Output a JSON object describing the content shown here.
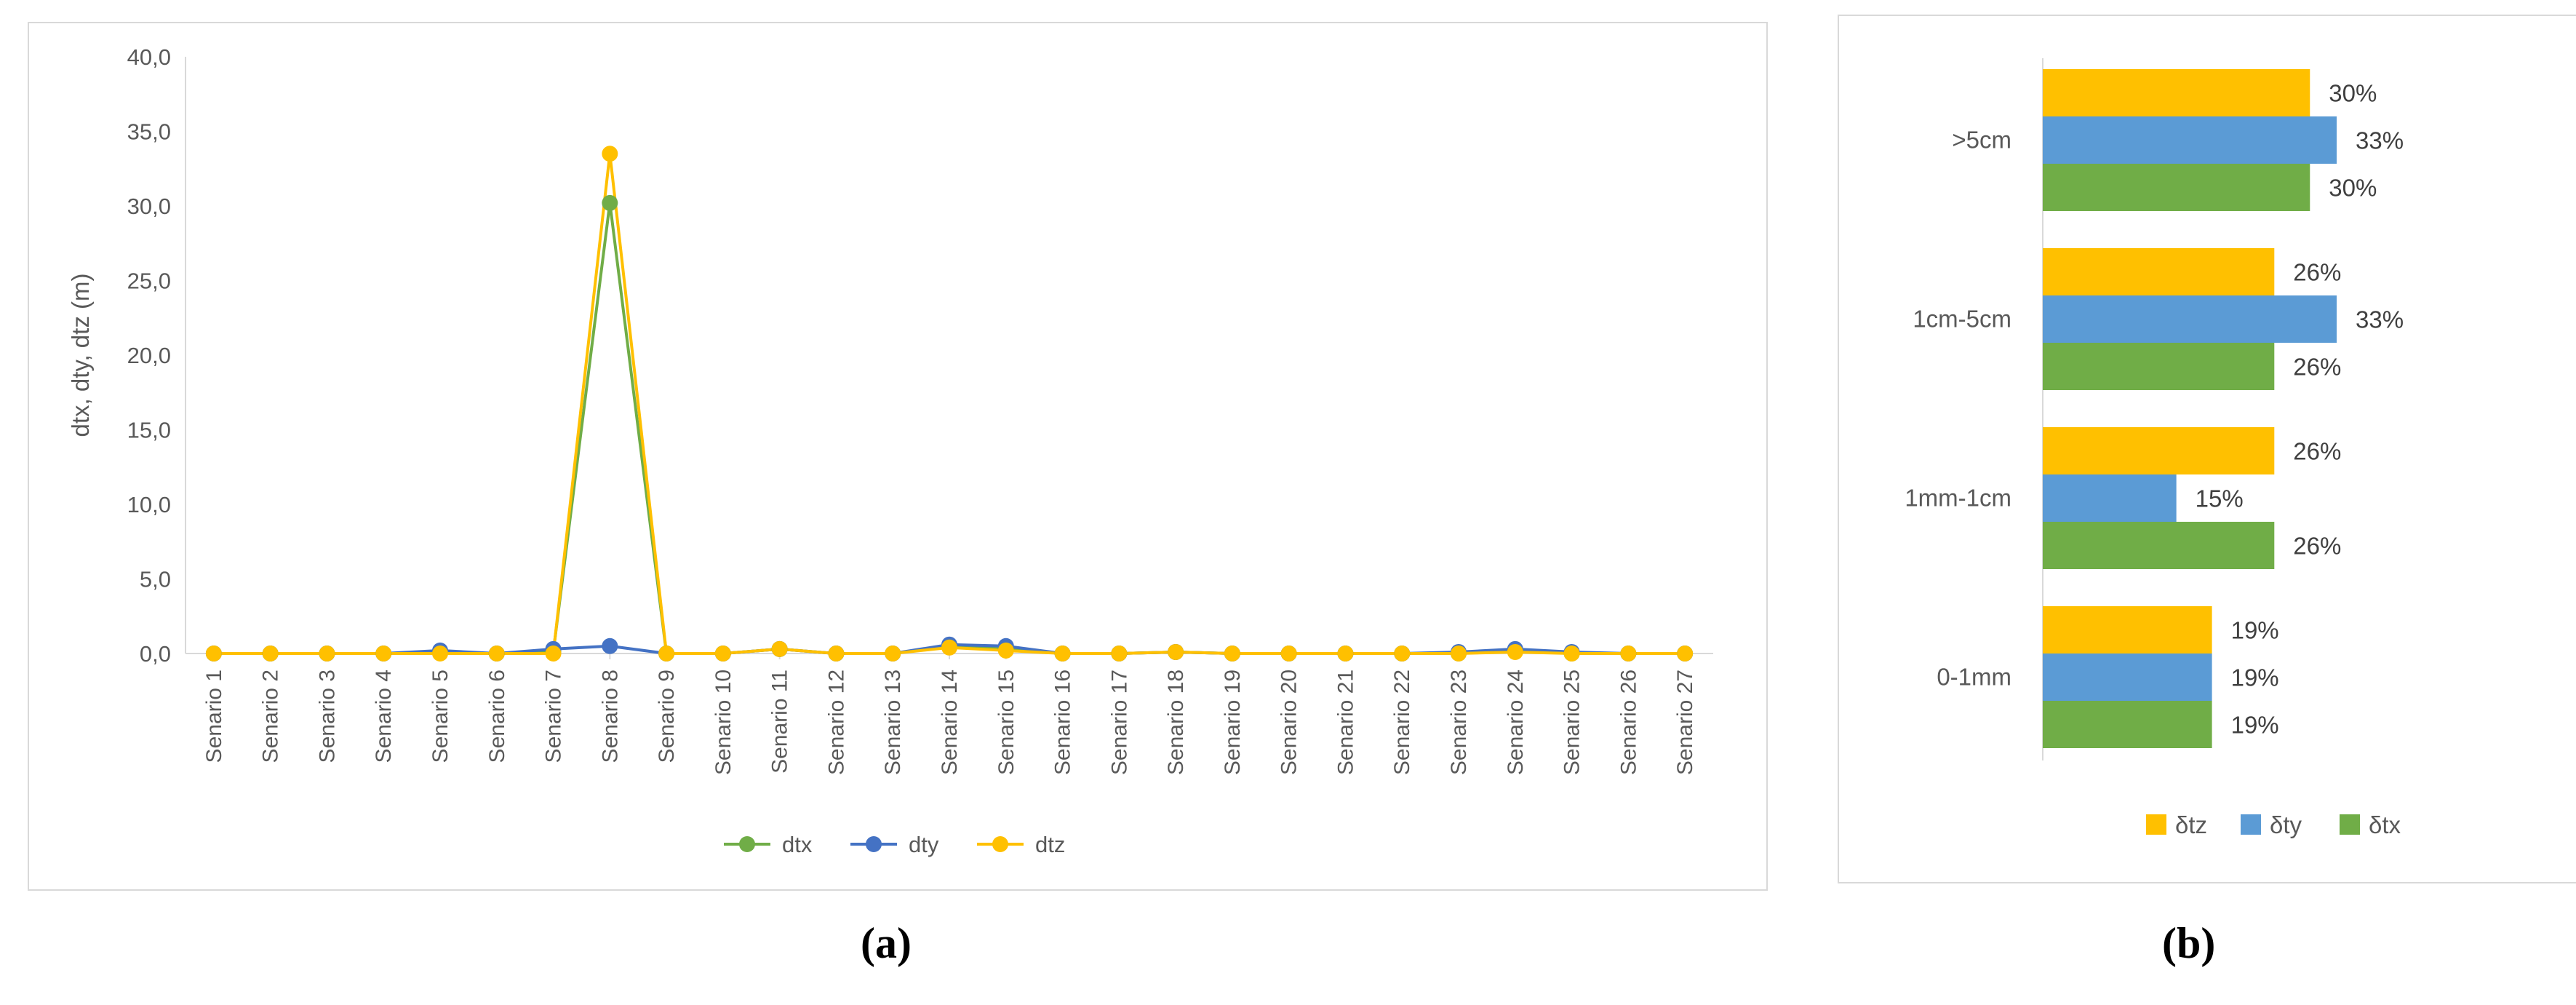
{
  "chart_data": [
    {
      "type": "line",
      "ylabel": "dtx, dty, dtz (m)",
      "ylim": [
        0,
        40
      ],
      "yticks": [
        "0,0",
        "5,0",
        "10,0",
        "15,0",
        "20,0",
        "25,0",
        "30,0",
        "35,0",
        "40,0"
      ],
      "grid": false,
      "legend_position": "bottom",
      "categories": [
        "Senario 1",
        "Senario 2",
        "Senario 3",
        "Senario 4",
        "Senario 5",
        "Senario 6",
        "Senario 7",
        "Senario 8",
        "Senario 9",
        "Senario 10",
        "Senario 11",
        "Senario 12",
        "Senario 13",
        "Senario 14",
        "Senario 15",
        "Senario 16",
        "Senario 17",
        "Senario 18",
        "Senario 19",
        "Senario 20",
        "Senario 21",
        "Senario 22",
        "Senario 23",
        "Senario 24",
        "Senario 25",
        "Senario 26",
        "Senario 27"
      ],
      "series": [
        {
          "name": "dtx",
          "color": "#70ad47",
          "values": [
            0,
            0,
            0,
            0,
            0.1,
            0,
            0.1,
            30.2,
            0,
            0,
            0.3,
            0,
            0,
            0.5,
            0.3,
            0,
            0,
            0.1,
            0,
            0,
            0,
            0,
            0,
            0.2,
            0,
            0,
            0
          ]
        },
        {
          "name": "dty",
          "color": "#4472c4",
          "values": [
            0,
            0,
            0,
            0,
            0.2,
            0,
            0.3,
            0.5,
            0,
            0,
            0.3,
            0,
            0,
            0.6,
            0.5,
            0,
            0,
            0.1,
            0,
            0,
            0,
            0,
            0.1,
            0.3,
            0.1,
            0,
            0
          ]
        },
        {
          "name": "dtz",
          "color": "#ffc000",
          "values": [
            0,
            0,
            0,
            0,
            0,
            0,
            0,
            33.5,
            0,
            0,
            0.3,
            0,
            0,
            0.4,
            0.2,
            0,
            0,
            0.1,
            0,
            0,
            0,
            0,
            0,
            0.1,
            0,
            0,
            0
          ]
        }
      ]
    },
    {
      "type": "bar",
      "orientation": "horizontal",
      "categories": [
        ">5cm",
        "1cm-5cm",
        "1mm-1cm",
        "0-1mm"
      ],
      "xlim": [
        0,
        35
      ],
      "grid": false,
      "legend_position": "bottom",
      "series": [
        {
          "name": "δtz",
          "color": "#ffc000",
          "values": [
            30,
            26,
            26,
            19
          ],
          "labels": [
            "30%",
            "26%",
            "26%",
            "19%"
          ]
        },
        {
          "name": "δty",
          "color": "#5b9bd5",
          "values": [
            33,
            33,
            15,
            19
          ],
          "labels": [
            "33%",
            "33%",
            "15%",
            "19%"
          ]
        },
        {
          "name": "δtx",
          "color": "#70ad47",
          "values": [
            30,
            26,
            26,
            19
          ],
          "labels": [
            "30%",
            "26%",
            "26%",
            "19%"
          ]
        }
      ],
      "legend_order": [
        "δtz",
        "δty",
        "δtx"
      ]
    }
  ],
  "captions": {
    "a": "(a)",
    "b": "(b)"
  }
}
